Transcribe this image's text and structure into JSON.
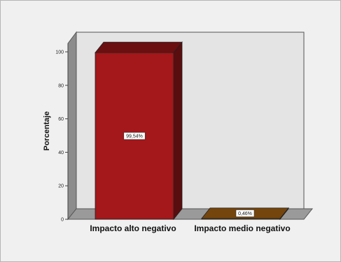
{
  "chart_data": {
    "type": "bar",
    "categories": [
      "Impacto alto negativo",
      "Impacto medio negativo"
    ],
    "values": [
      99.54,
      0.46
    ],
    "data_labels": [
      "99,54%",
      "0,46%"
    ],
    "ylabel": "Porcentaje",
    "ylim": [
      0,
      100
    ],
    "yticks": [
      0,
      20,
      40,
      60,
      80,
      100
    ],
    "grid": false,
    "bar_colors": [
      "#a4171a",
      "#b36a12"
    ],
    "three_d": true
  }
}
